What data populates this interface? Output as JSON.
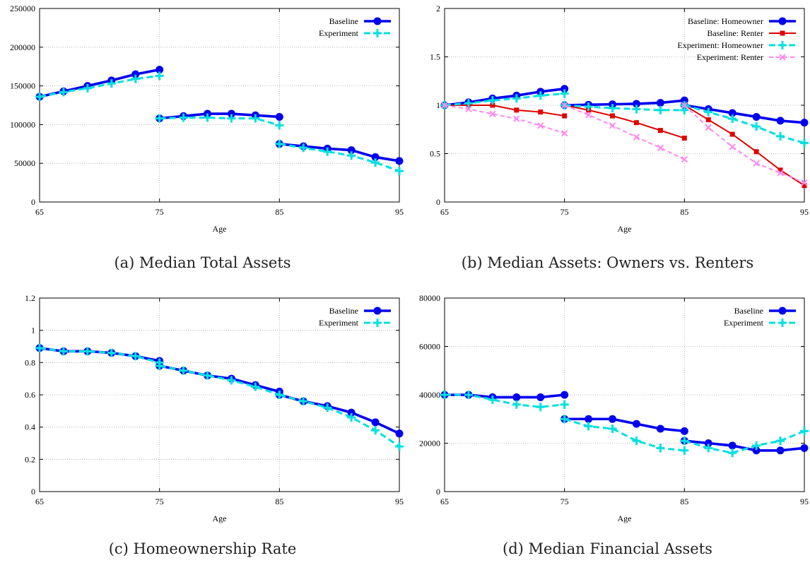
{
  "colors": {
    "baseline": "#0000ee",
    "experiment": "#00e0e0",
    "baseline_renter": "#e00000",
    "experiment_renter": "#ff88ee",
    "grid": "#aaaaaa"
  },
  "chart_data": [
    {
      "id": "a",
      "type": "line",
      "caption": "(a) Median Total Assets",
      "xlabel": "Age",
      "ylabel": "",
      "xlim": [
        65,
        95
      ],
      "ylim": [
        0,
        250000
      ],
      "xticks": [
        65,
        75,
        85,
        95
      ],
      "yticks": [
        0,
        50000,
        100000,
        150000,
        200000,
        250000
      ],
      "grid": true,
      "legend_position": "top-right",
      "series": [
        {
          "name": "Baseline",
          "style": "baseline",
          "segments": [
            {
              "x": [
                65,
                67,
                69,
                71,
                73,
                75
              ],
              "y": [
                136000,
                143000,
                150000,
                157000,
                165000,
                171000
              ]
            },
            {
              "x": [
                75,
                77,
                79,
                81,
                83,
                85
              ],
              "y": [
                108000,
                111000,
                114000,
                114000,
                112000,
                110000
              ]
            },
            {
              "x": [
                85,
                87,
                89,
                91,
                93,
                95
              ],
              "y": [
                75000,
                72000,
                69000,
                67000,
                58000,
                53000
              ]
            }
          ]
        },
        {
          "name": "Experiment",
          "style": "experiment",
          "segments": [
            {
              "x": [
                65,
                67,
                69,
                71,
                73,
                75
              ],
              "y": [
                136000,
                142000,
                147000,
                153000,
                159000,
                163000
              ]
            },
            {
              "x": [
                75,
                77,
                79,
                81,
                83,
                85
              ],
              "y": [
                108000,
                109000,
                109000,
                108000,
                108000,
                99000
              ]
            },
            {
              "x": [
                85,
                87,
                89,
                91,
                93,
                95
              ],
              "y": [
                75000,
                70000,
                65000,
                60000,
                51000,
                40000
              ]
            }
          ]
        }
      ]
    },
    {
      "id": "b",
      "type": "line",
      "caption": "(b) Median Assets: Owners vs. Renters",
      "xlabel": "Age",
      "ylabel": "",
      "xlim": [
        65,
        95
      ],
      "ylim": [
        0,
        2
      ],
      "xticks": [
        65,
        75,
        85,
        95
      ],
      "yticks": [
        0,
        0.5,
        1,
        1.5,
        2
      ],
      "grid": true,
      "legend_position": "top-right",
      "series": [
        {
          "name": "Baseline: Homeowner",
          "style": "baseline",
          "segments": [
            {
              "x": [
                65,
                67,
                69,
                71,
                73,
                75
              ],
              "y": [
                1.0,
                1.03,
                1.07,
                1.1,
                1.14,
                1.17
              ]
            },
            {
              "x": [
                75,
                77,
                79,
                81,
                83,
                85
              ],
              "y": [
                1.0,
                1.005,
                1.01,
                1.015,
                1.025,
                1.05
              ]
            },
            {
              "x": [
                85,
                87,
                89,
                91,
                93,
                95
              ],
              "y": [
                1.0,
                0.96,
                0.92,
                0.88,
                0.84,
                0.82
              ]
            }
          ]
        },
        {
          "name": "Baseline: Renter",
          "style": "baseline_renter",
          "segments": [
            {
              "x": [
                65,
                67,
                69,
                71,
                73,
                75
              ],
              "y": [
                1.0,
                1.0,
                1.0,
                0.95,
                0.93,
                0.89
              ]
            },
            {
              "x": [
                75,
                77,
                79,
                81,
                83,
                85
              ],
              "y": [
                1.0,
                0.95,
                0.89,
                0.82,
                0.74,
                0.66
              ]
            },
            {
              "x": [
                85,
                87,
                89,
                91,
                93,
                95
              ],
              "y": [
                1.0,
                0.85,
                0.7,
                0.52,
                0.33,
                0.17
              ]
            }
          ]
        },
        {
          "name": "Experiment: Homeowner",
          "style": "experiment",
          "segments": [
            {
              "x": [
                65,
                67,
                69,
                71,
                73,
                75
              ],
              "y": [
                1.0,
                1.02,
                1.05,
                1.07,
                1.1,
                1.12
              ]
            },
            {
              "x": [
                75,
                77,
                79,
                81,
                83,
                85
              ],
              "y": [
                1.0,
                0.985,
                0.97,
                0.96,
                0.95,
                0.95
              ]
            },
            {
              "x": [
                85,
                87,
                89,
                91,
                93,
                95
              ],
              "y": [
                1.0,
                0.93,
                0.86,
                0.78,
                0.68,
                0.61
              ]
            }
          ]
        },
        {
          "name": "Experiment: Renter",
          "style": "experiment_renter",
          "segments": [
            {
              "x": [
                65,
                67,
                69,
                71,
                73,
                75
              ],
              "y": [
                1.0,
                0.96,
                0.91,
                0.86,
                0.79,
                0.71
              ]
            },
            {
              "x": [
                75,
                77,
                79,
                81,
                83,
                85
              ],
              "y": [
                1.0,
                0.9,
                0.79,
                0.67,
                0.56,
                0.44
              ]
            },
            {
              "x": [
                85,
                87,
                89,
                91,
                93,
                95
              ],
              "y": [
                1.0,
                0.77,
                0.57,
                0.4,
                0.3,
                0.2
              ]
            }
          ]
        }
      ]
    },
    {
      "id": "c",
      "type": "line",
      "caption": "(c) Homeownership Rate",
      "xlabel": "Age",
      "ylabel": "",
      "xlim": [
        65,
        95
      ],
      "ylim": [
        0,
        1.2
      ],
      "xticks": [
        65,
        75,
        85,
        95
      ],
      "yticks": [
        0,
        0.2,
        0.4,
        0.6,
        0.8,
        1,
        1.2
      ],
      "grid": true,
      "legend_position": "top-right",
      "series": [
        {
          "name": "Baseline",
          "style": "baseline",
          "segments": [
            {
              "x": [
                65,
                67,
                69,
                71,
                73,
                75
              ],
              "y": [
                0.89,
                0.87,
                0.87,
                0.86,
                0.84,
                0.81
              ]
            },
            {
              "x": [
                75,
                77,
                79,
                81,
                83,
                85
              ],
              "y": [
                0.78,
                0.75,
                0.72,
                0.7,
                0.66,
                0.62
              ]
            },
            {
              "x": [
                85,
                87,
                89,
                91,
                93,
                95
              ],
              "y": [
                0.6,
                0.56,
                0.53,
                0.49,
                0.43,
                0.36
              ]
            }
          ]
        },
        {
          "name": "Experiment",
          "style": "experiment",
          "segments": [
            {
              "x": [
                65,
                67,
                69,
                71,
                73,
                75
              ],
              "y": [
                0.89,
                0.87,
                0.87,
                0.86,
                0.84,
                0.8
              ]
            },
            {
              "x": [
                75,
                77,
                79,
                81,
                83,
                85
              ],
              "y": [
                0.78,
                0.75,
                0.72,
                0.69,
                0.65,
                0.6
              ]
            },
            {
              "x": [
                85,
                87,
                89,
                91,
                93,
                95
              ],
              "y": [
                0.6,
                0.56,
                0.52,
                0.46,
                0.38,
                0.28
              ]
            }
          ]
        }
      ]
    },
    {
      "id": "d",
      "type": "line",
      "caption": "(d) Median Financial Assets",
      "xlabel": "Age",
      "ylabel": "",
      "xlim": [
        65,
        95
      ],
      "ylim": [
        0,
        80000
      ],
      "xticks": [
        65,
        75,
        85,
        95
      ],
      "yticks": [
        0,
        20000,
        40000,
        60000,
        80000
      ],
      "grid": true,
      "legend_position": "top-right",
      "series": [
        {
          "name": "Baseline",
          "style": "baseline",
          "segments": [
            {
              "x": [
                65,
                67,
                69,
                71,
                73,
                75
              ],
              "y": [
                40000,
                40000,
                39000,
                39000,
                39000,
                40000
              ]
            },
            {
              "x": [
                75,
                77,
                79,
                81,
                83,
                85
              ],
              "y": [
                30000,
                30000,
                30000,
                28000,
                26000,
                25000
              ]
            },
            {
              "x": [
                85,
                87,
                89,
                91,
                93,
                95
              ],
              "y": [
                21000,
                20000,
                19000,
                17000,
                17000,
                18000
              ]
            }
          ]
        },
        {
          "name": "Experiment",
          "style": "experiment",
          "segments": [
            {
              "x": [
                65,
                67,
                69,
                71,
                73,
                75
              ],
              "y": [
                40000,
                40000,
                38000,
                36000,
                35000,
                36000
              ]
            },
            {
              "x": [
                75,
                77,
                79,
                81,
                83,
                85
              ],
              "y": [
                30000,
                27000,
                26000,
                21000,
                18000,
                17000
              ]
            },
            {
              "x": [
                85,
                87,
                89,
                91,
                93,
                95
              ],
              "y": [
                21000,
                18000,
                16000,
                19000,
                21000,
                25000
              ]
            }
          ]
        }
      ]
    }
  ]
}
